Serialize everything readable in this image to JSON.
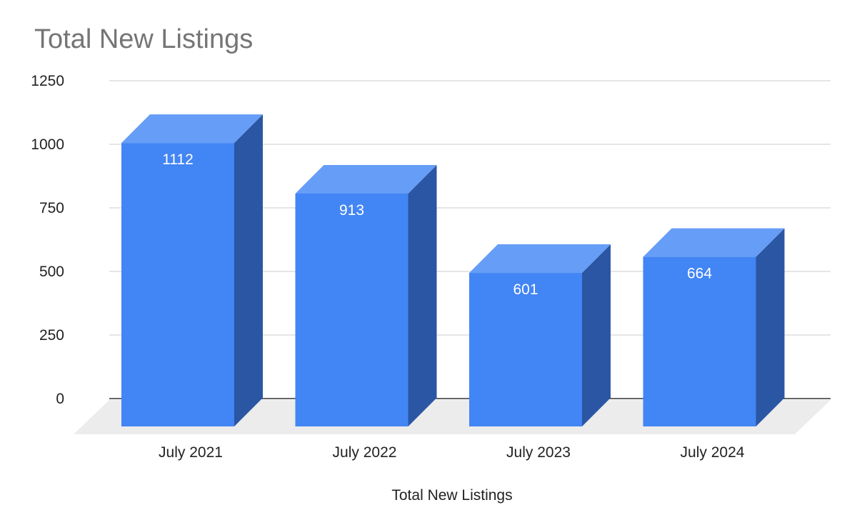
{
  "chart_data": {
    "type": "bar",
    "title": "Total New Listings",
    "xlabel": "Total New Listings",
    "ylabel": "",
    "categories": [
      "July 2021",
      "July 2022",
      "July 2023",
      "July 2024"
    ],
    "values": [
      1112,
      913,
      601,
      664
    ],
    "data_labels": [
      "1112",
      "913",
      "601",
      "664"
    ],
    "ylim": [
      0,
      1250
    ],
    "yticks": [
      0,
      250,
      500,
      750,
      1000,
      1250
    ],
    "grid": true,
    "legend": "none",
    "style": "3d",
    "colors": {
      "bar_front": "#4285f4",
      "bar_top": "#669df6",
      "bar_side": "#2b56a3",
      "floor": "#ececec",
      "grid": "#cccccc",
      "baseline": "#333333",
      "title": "#757575",
      "text": "#222222",
      "data_label": "#ffffff"
    }
  }
}
